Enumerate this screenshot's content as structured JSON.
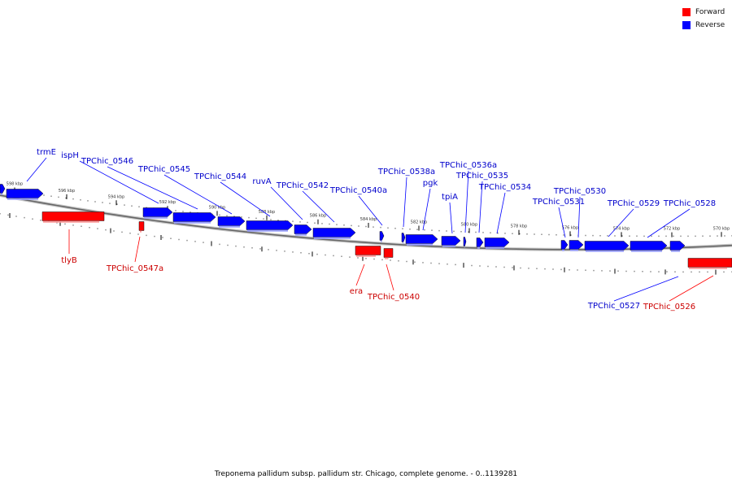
{
  "legend": {
    "forward": {
      "label": "Forward",
      "color": "#ff0000"
    },
    "reverse": {
      "label": "Reverse",
      "color": "#0000ff"
    }
  },
  "caption": "Treponema pallidum subsp. pallidum str. Chicago, complete genome. - 0..1139281",
  "ruler": {
    "ticks": [
      "598 kbp",
      "596 kbp",
      "594 kbp",
      "592 kbp",
      "590 kbp",
      "588 kbp",
      "586 kbp",
      "584 kbp",
      "582 kbp",
      "580 kbp",
      "578 kbp",
      "576 kbp",
      "574 kbp",
      "572 kbp",
      "570 kbp"
    ]
  },
  "genes": {
    "reverse": [
      "trmE",
      "ispH",
      "TPChic_0546",
      "TPChic_0545",
      "TPChic_0544",
      "ruvA",
      "TPChic_0542",
      "TPChic_0540a",
      "TPChic_0538a",
      "pgk",
      "TPChic_0536a",
      "TPChic_0535",
      "tpiA",
      "TPChic_0534",
      "TPChic_0530",
      "TPChic_0531",
      "TPChic_0529",
      "TPChic_0528",
      "TPChic_0527"
    ],
    "forward": [
      "tlyB",
      "TPChic_0547a",
      "era",
      "TPChic_0540",
      "TPChic_0526"
    ]
  }
}
